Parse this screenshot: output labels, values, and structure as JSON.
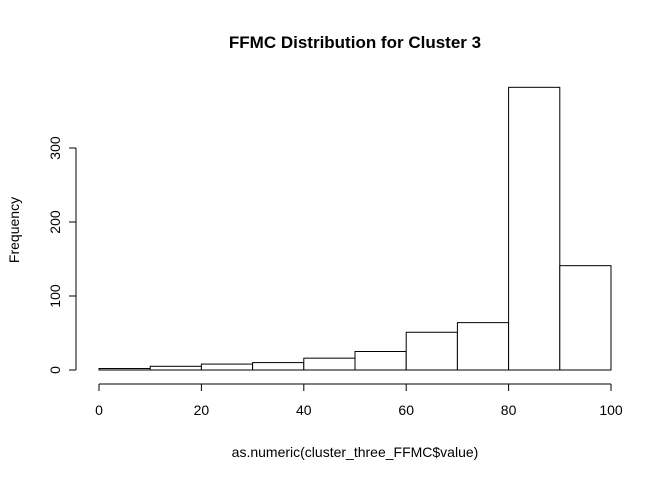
{
  "chart_data": {
    "type": "bar",
    "title": "FFMC Distribution for Cluster 3",
    "xlabel": "as.numeric(cluster_three_FFMC$value)",
    "ylabel": "Frequency",
    "bins": [
      {
        "from": 0,
        "to": 10,
        "count": 2
      },
      {
        "from": 10,
        "to": 20,
        "count": 5
      },
      {
        "from": 20,
        "to": 30,
        "count": 8
      },
      {
        "from": 30,
        "to": 40,
        "count": 10
      },
      {
        "from": 40,
        "to": 50,
        "count": 16
      },
      {
        "from": 50,
        "to": 60,
        "count": 25
      },
      {
        "from": 60,
        "to": 70,
        "count": 51
      },
      {
        "from": 70,
        "to": 80,
        "count": 64
      },
      {
        "from": 80,
        "to": 90,
        "count": 382
      },
      {
        "from": 90,
        "to": 100,
        "count": 141
      }
    ],
    "xlim": [
      0,
      100
    ],
    "ylim": [
      0,
      382
    ],
    "xticks": [
      0,
      20,
      40,
      60,
      80,
      100
    ],
    "yticks": [
      0,
      100,
      200,
      300
    ],
    "grid": false,
    "colors": {
      "bar_fill": "#ffffff",
      "bar_stroke": "#000000"
    }
  }
}
